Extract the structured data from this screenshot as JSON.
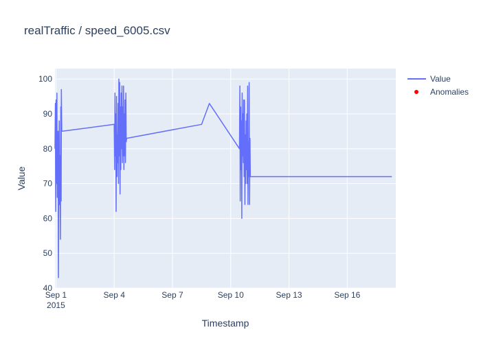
{
  "chart_data": {
    "type": "line",
    "title": "realTraffic / speed_6005.csv",
    "xlabel": "Timestamp",
    "ylabel": "Value",
    "xlim_days": [
      0.95,
      18.5
    ],
    "ylim": [
      40,
      103
    ],
    "x_ticks": [
      {
        "day": 1,
        "label": "Sep 1",
        "sublabel": "2015"
      },
      {
        "day": 4,
        "label": "Sep 4"
      },
      {
        "day": 7,
        "label": "Sep 7"
      },
      {
        "day": 10,
        "label": "Sep 10"
      },
      {
        "day": 13,
        "label": "Sep 13"
      },
      {
        "day": 16,
        "label": "Sep 16"
      }
    ],
    "y_ticks": [
      40,
      50,
      60,
      70,
      80,
      90,
      100
    ],
    "grid": true,
    "legend_position": "top-right",
    "series": [
      {
        "name": "Value",
        "color": "#636efa",
        "mode": "lines",
        "points": [
          [
            0.95,
            80
          ],
          [
            0.97,
            93
          ],
          [
            0.99,
            62
          ],
          [
            1.01,
            94
          ],
          [
            1.03,
            70
          ],
          [
            1.05,
            96
          ],
          [
            1.07,
            66
          ],
          [
            1.09,
            72
          ],
          [
            1.11,
            85
          ],
          [
            1.13,
            43
          ],
          [
            1.15,
            74
          ],
          [
            1.17,
            88
          ],
          [
            1.19,
            64
          ],
          [
            1.21,
            78
          ],
          [
            1.23,
            54
          ],
          [
            1.25,
            92
          ],
          [
            1.27,
            65
          ],
          [
            1.28,
            97
          ],
          [
            1.3,
            85
          ],
          [
            4.0,
            87
          ],
          [
            4.02,
            74
          ],
          [
            4.04,
            96
          ],
          [
            4.06,
            78
          ],
          [
            4.08,
            90
          ],
          [
            4.1,
            62
          ],
          [
            4.12,
            95
          ],
          [
            4.14,
            72
          ],
          [
            4.16,
            84
          ],
          [
            4.18,
            76
          ],
          [
            4.2,
            93
          ],
          [
            4.22,
            70
          ],
          [
            4.24,
            100
          ],
          [
            4.26,
            78
          ],
          [
            4.28,
            99
          ],
          [
            4.3,
            67
          ],
          [
            4.32,
            92
          ],
          [
            4.34,
            74
          ],
          [
            4.36,
            96
          ],
          [
            4.38,
            80
          ],
          [
            4.4,
            98
          ],
          [
            4.42,
            76
          ],
          [
            4.44,
            92
          ],
          [
            4.46,
            78
          ],
          [
            4.48,
            98
          ],
          [
            4.5,
            74
          ],
          [
            4.52,
            90
          ],
          [
            4.54,
            78
          ],
          [
            4.56,
            94
          ],
          [
            4.58,
            76
          ],
          [
            4.6,
            96
          ],
          [
            4.62,
            82
          ],
          [
            4.64,
            83
          ],
          [
            8.5,
            87
          ],
          [
            8.9,
            93
          ],
          [
            10.45,
            80
          ],
          [
            10.47,
            98
          ],
          [
            10.49,
            65
          ],
          [
            10.51,
            92
          ],
          [
            10.53,
            74
          ],
          [
            10.55,
            88
          ],
          [
            10.57,
            60
          ],
          [
            10.59,
            96
          ],
          [
            10.61,
            78
          ],
          [
            10.63,
            90
          ],
          [
            10.65,
            76
          ],
          [
            10.67,
            94
          ],
          [
            10.69,
            72
          ],
          [
            10.71,
            94
          ],
          [
            10.73,
            64
          ],
          [
            10.75,
            84
          ],
          [
            10.77,
            70
          ],
          [
            10.79,
            88
          ],
          [
            10.81,
            74
          ],
          [
            10.83,
            90
          ],
          [
            10.85,
            70
          ],
          [
            10.87,
            98
          ],
          [
            10.89,
            64
          ],
          [
            10.91,
            82
          ],
          [
            10.93,
            72
          ],
          [
            10.95,
            99
          ],
          [
            10.97,
            64
          ],
          [
            10.99,
            83
          ],
          [
            11.01,
            72
          ],
          [
            18.3,
            72
          ]
        ]
      },
      {
        "name": "Anomalies",
        "color": "#ff0000",
        "mode": "markers",
        "points": []
      }
    ]
  }
}
